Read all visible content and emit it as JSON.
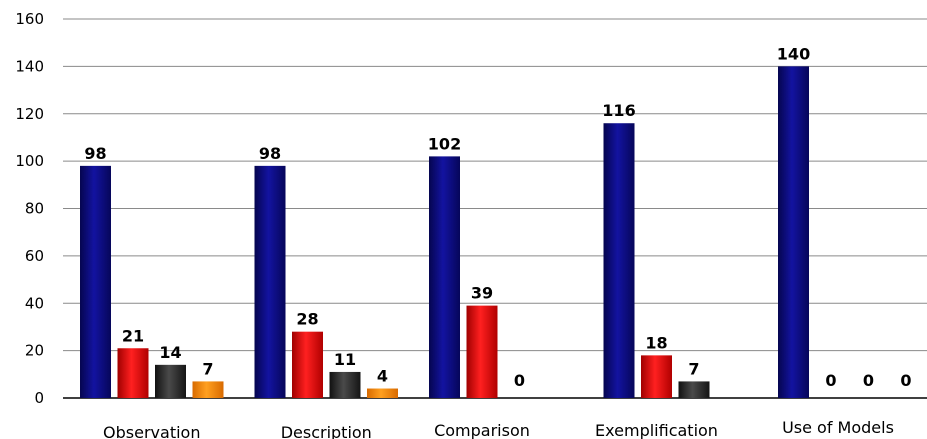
{
  "chart_data": {
    "type": "bar",
    "categories": [
      "Observation",
      "Description",
      "Comparison",
      "Exemplification",
      "Use of Models"
    ],
    "series": [
      {
        "values": [
          98,
          98,
          102,
          116,
          140
        ],
        "color": "#0b0b85"
      },
      {
        "values": [
          21,
          28,
          39,
          18,
          0
        ],
        "color": "#e81010"
      },
      {
        "values": [
          14,
          11,
          0,
          7,
          0
        ],
        "color": "#2a2a2a"
      },
      {
        "values": [
          7,
          4,
          0,
          0,
          0
        ],
        "color": "#f28a00"
      }
    ],
    "series_per_category": [
      4,
      4,
      3,
      3,
      4
    ],
    "yticks": [
      "0",
      "20",
      "40",
      "60",
      "80",
      "100",
      "120",
      "140",
      "160"
    ],
    "ylim": [
      0,
      160
    ],
    "grid": true,
    "legend": "none",
    "title": "",
    "xlabel": "",
    "ylabel": ""
  }
}
